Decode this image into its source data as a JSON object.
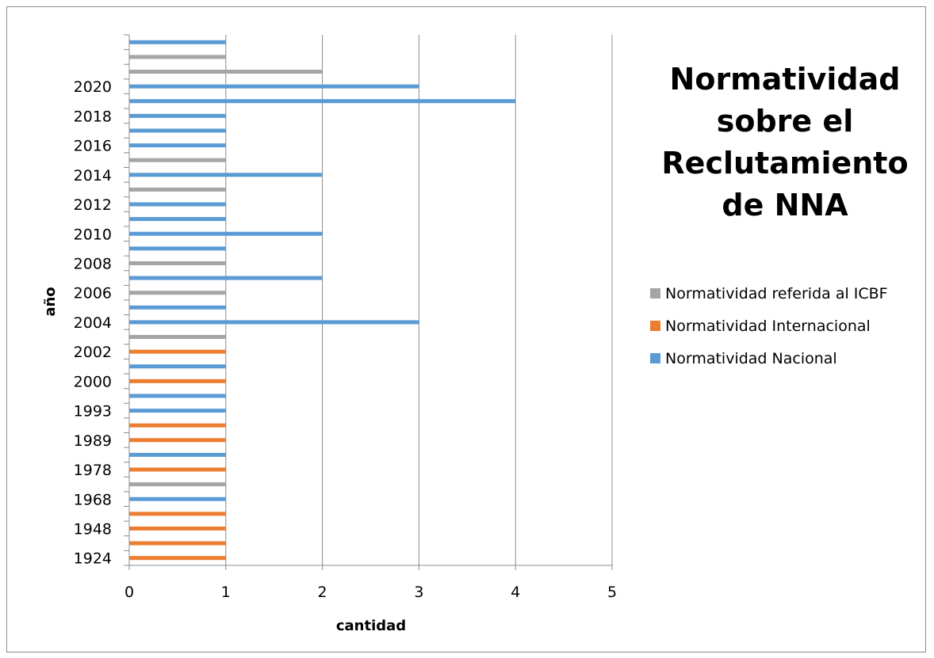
{
  "chart_data": {
    "type": "bar",
    "orientation": "horizontal",
    "title": "Normatividad sobre el Reclutamiento de NNA",
    "xlabel": "cantidad",
    "ylabel": "año",
    "xlim": [
      0,
      5
    ],
    "x_ticks": [
      "0",
      "1",
      "2",
      "3",
      "4",
      "5"
    ],
    "y_tick_labels": [
      "1924",
      "1948",
      "1968",
      "1978",
      "1989",
      "1993",
      "2000",
      "2002",
      "2004",
      "2006",
      "2008",
      "2010",
      "2012",
      "2014",
      "2016",
      "2018",
      "2020"
    ],
    "grid": "vertical",
    "legend_position": "right",
    "series": [
      {
        "name": "Normatividad referida al ICBF",
        "color": "#a5a5a5"
      },
      {
        "name": "Normatividad Internacional",
        "color": "#ed7d31"
      },
      {
        "name": "Normatividad Nacional",
        "color": "#5b9bd5"
      }
    ],
    "bars": [
      {
        "series": 1,
        "value": 1
      },
      {
        "series": 1,
        "value": 1
      },
      {
        "series": 1,
        "value": 1
      },
      {
        "series": 1,
        "value": 1
      },
      {
        "series": 2,
        "value": 1
      },
      {
        "series": 0,
        "value": 1
      },
      {
        "series": 1,
        "value": 1
      },
      {
        "series": 2,
        "value": 1
      },
      {
        "series": 1,
        "value": 1
      },
      {
        "series": 1,
        "value": 1
      },
      {
        "series": 2,
        "value": 1
      },
      {
        "series": 2,
        "value": 1
      },
      {
        "series": 1,
        "value": 1
      },
      {
        "series": 2,
        "value": 1
      },
      {
        "series": 1,
        "value": 1
      },
      {
        "series": 0,
        "value": 1
      },
      {
        "series": 2,
        "value": 3
      },
      {
        "series": 2,
        "value": 1
      },
      {
        "series": 0,
        "value": 1
      },
      {
        "series": 2,
        "value": 2
      },
      {
        "series": 0,
        "value": 1
      },
      {
        "series": 2,
        "value": 1
      },
      {
        "series": 2,
        "value": 2
      },
      {
        "series": 2,
        "value": 1
      },
      {
        "series": 2,
        "value": 1
      },
      {
        "series": 0,
        "value": 1
      },
      {
        "series": 2,
        "value": 2
      },
      {
        "series": 0,
        "value": 1
      },
      {
        "series": 2,
        "value": 1
      },
      {
        "series": 2,
        "value": 1
      },
      {
        "series": 2,
        "value": 1
      },
      {
        "series": 2,
        "value": 4
      },
      {
        "series": 2,
        "value": 3
      },
      {
        "series": 0,
        "value": 2
      },
      {
        "series": 0,
        "value": 1
      },
      {
        "series": 2,
        "value": 1
      }
    ]
  }
}
